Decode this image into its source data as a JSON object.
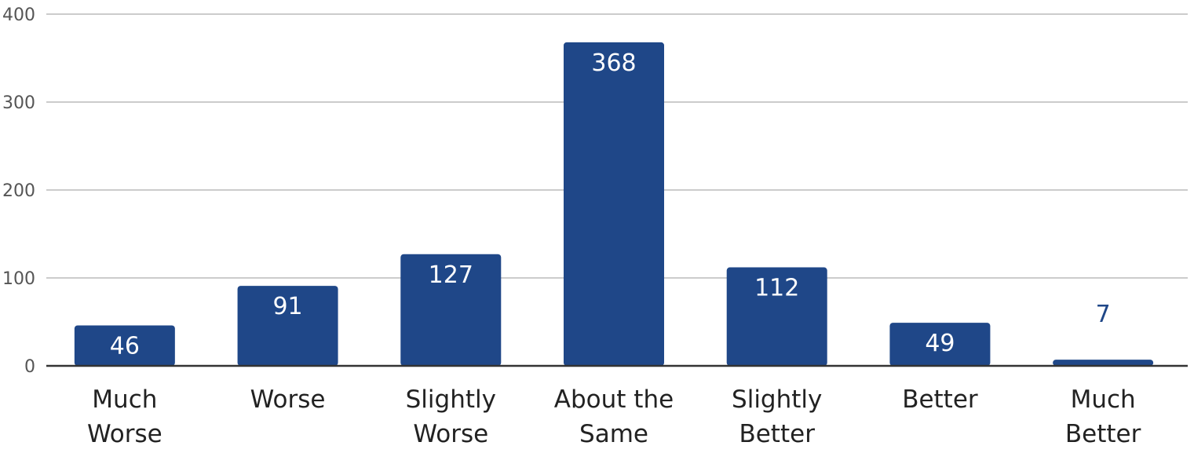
{
  "chart_data": {
    "type": "bar",
    "title": "",
    "xlabel": "",
    "ylabel": "",
    "categories": [
      [
        "Much",
        "Worse"
      ],
      [
        "Worse"
      ],
      [
        "Slightly",
        "Worse"
      ],
      [
        "About the",
        "Same"
      ],
      [
        "Slightly",
        "Better"
      ],
      [
        "Better"
      ],
      [
        "Much",
        "Better"
      ]
    ],
    "values": [
      46,
      91,
      127,
      368,
      112,
      49,
      7
    ],
    "ylim": [
      0,
      400
    ],
    "yticks": [
      0,
      100,
      200,
      300,
      400
    ],
    "grid": true,
    "legend": "none",
    "data_labels": true,
    "colors": {
      "bar": "#1f4788",
      "label_outside": "#1f4788",
      "label_inside": "#ffffff",
      "grid": "#cccccc",
      "axis": "#333333",
      "tick_text": "#555555",
      "category_text": "#222222"
    }
  }
}
